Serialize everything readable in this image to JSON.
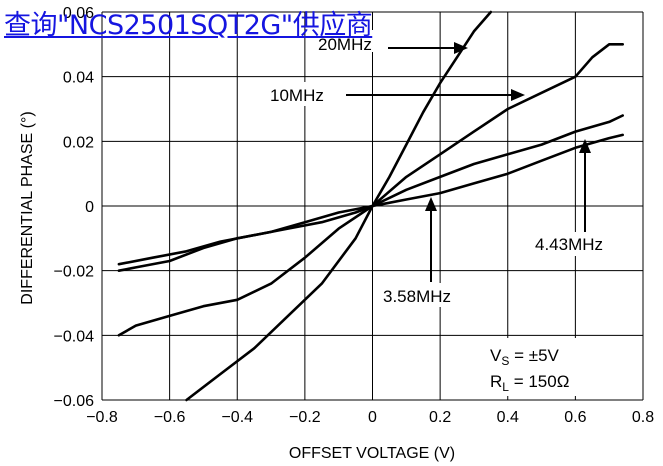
{
  "overlay_link": "查询\"NCS2501SQT2G\"供应商",
  "chart_data": {
    "type": "line",
    "xlabel": "OFFSET VOLTAGE (V)",
    "ylabel": "DIFFERENTIAL PHASE (°)",
    "xlim": [
      -0.8,
      0.8
    ],
    "ylim": [
      -0.06,
      0.06
    ],
    "x_ticks": [
      "−0.8",
      "−0.6",
      "−0.4",
      "−0.2",
      "0",
      "0.2",
      "0.4",
      "0.6",
      "0.8"
    ],
    "y_ticks": [
      "−0.06",
      "−0.04",
      "−0.02",
      "0",
      "0.02",
      "0.04",
      "0.06"
    ],
    "grid": true,
    "conditions": [
      {
        "text": "V",
        "sub": "S",
        "rest": " = ±5V"
      },
      {
        "text": "R",
        "sub": "L",
        "rest": " = 150Ω"
      }
    ],
    "series": [
      {
        "name": "20MHz",
        "x": [
          -0.55,
          -0.45,
          -0.35,
          -0.25,
          -0.15,
          -0.05,
          0,
          0.05,
          0.1,
          0.15,
          0.2,
          0.25,
          0.3,
          0.35
        ],
        "y": [
          -0.06,
          -0.052,
          -0.044,
          -0.034,
          -0.024,
          -0.01,
          0,
          0.009,
          0.019,
          0.029,
          0.038,
          0.046,
          0.054,
          0.06
        ]
      },
      {
        "name": "10MHz",
        "x": [
          -0.75,
          -0.7,
          -0.6,
          -0.5,
          -0.4,
          -0.3,
          -0.2,
          -0.1,
          0,
          0.1,
          0.2,
          0.3,
          0.4,
          0.5,
          0.6,
          0.65,
          0.7,
          0.74
        ],
        "y": [
          -0.04,
          -0.037,
          -0.034,
          -0.031,
          -0.029,
          -0.024,
          -0.016,
          -0.007,
          0,
          0.009,
          0.016,
          0.023,
          0.03,
          0.035,
          0.04,
          0.046,
          0.05,
          0.05
        ]
      },
      {
        "name": "4.43MHz",
        "x": [
          -0.75,
          -0.65,
          -0.55,
          -0.45,
          -0.35,
          -0.25,
          -0.15,
          -0.05,
          0,
          0.1,
          0.2,
          0.3,
          0.4,
          0.5,
          0.6,
          0.7,
          0.74
        ],
        "y": [
          -0.018,
          -0.016,
          -0.014,
          -0.011,
          -0.009,
          -0.007,
          -0.005,
          -0.002,
          0,
          0.005,
          0.009,
          0.013,
          0.016,
          0.019,
          0.023,
          0.026,
          0.028
        ]
      },
      {
        "name": "3.58MHz",
        "x": [
          -0.75,
          -0.7,
          -0.6,
          -0.5,
          -0.4,
          -0.3,
          -0.2,
          -0.1,
          0,
          0.1,
          0.2,
          0.3,
          0.4,
          0.5,
          0.6,
          0.7,
          0.74
        ],
        "y": [
          -0.02,
          -0.019,
          -0.017,
          -0.013,
          -0.01,
          -0.008,
          -0.005,
          -0.002,
          0,
          0.002,
          0.004,
          0.007,
          0.01,
          0.014,
          0.018,
          0.021,
          0.022
        ]
      }
    ]
  }
}
